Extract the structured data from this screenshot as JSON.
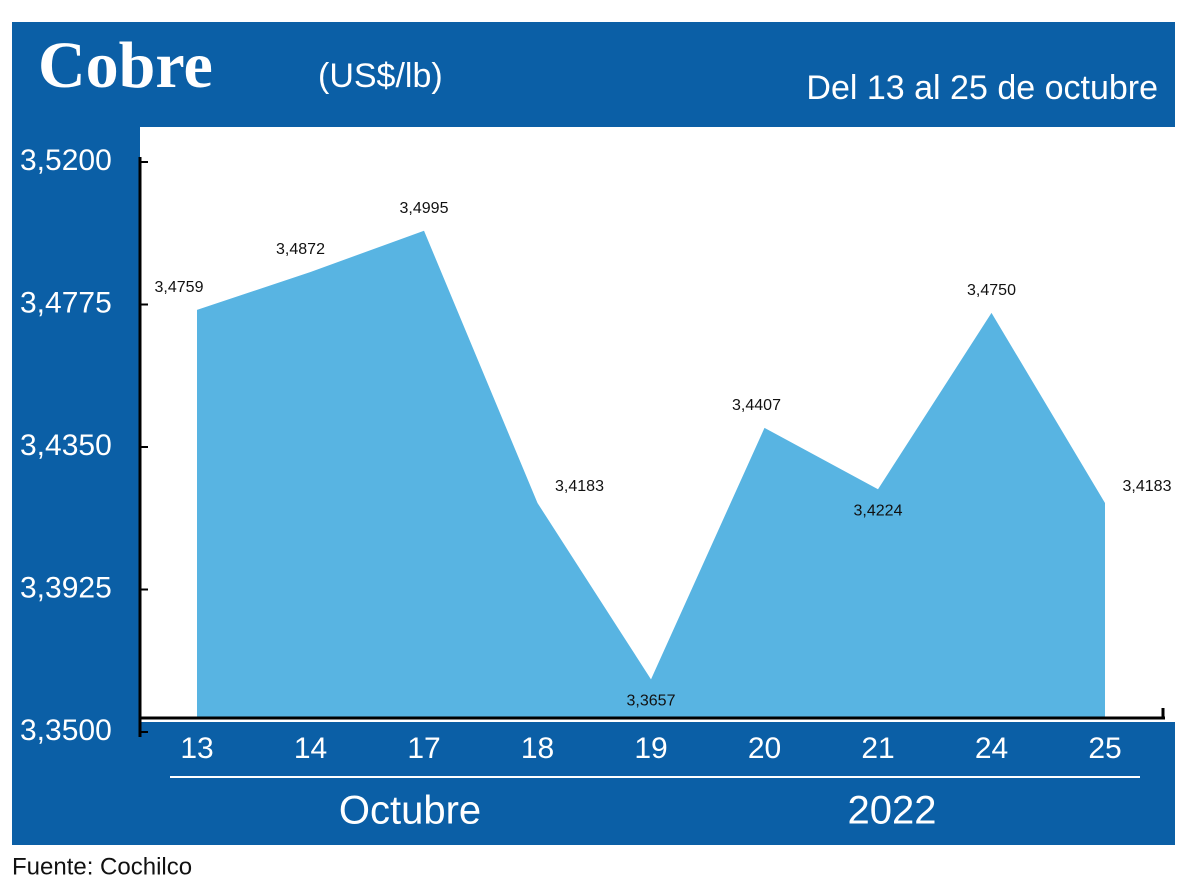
{
  "chart_data": {
    "type": "area",
    "title": "Cobre",
    "subtitle": "(US$/lb)",
    "date_range": "Del 13 al 25 de octubre",
    "categories": [
      "13",
      "14",
      "17",
      "18",
      "19",
      "20",
      "21",
      "24",
      "25"
    ],
    "values": [
      3.4759,
      3.4872,
      3.4995,
      3.4183,
      3.3657,
      3.4407,
      3.4224,
      3.475,
      3.4183
    ],
    "value_labels": [
      "3,4759",
      "3,4872",
      "3,4995",
      "3,4183",
      "3,3657",
      "3,4407",
      "3,4224",
      "3,4750",
      "3,4183"
    ],
    "color": "#58b4e2",
    "ylim": [
      3.35,
      3.52
    ],
    "yticks": [
      {
        "value": 3.52,
        "label": "3,5200"
      },
      {
        "value": 3.4775,
        "label": "3,4775"
      },
      {
        "value": 3.435,
        "label": "3,4350"
      },
      {
        "value": 3.3925,
        "label": "3,3925"
      },
      {
        "value": 3.35,
        "label": "3,3500"
      }
    ],
    "x_labels": [
      "Octubre",
      "2022"
    ],
    "source": "Fuente: Cochilco"
  }
}
